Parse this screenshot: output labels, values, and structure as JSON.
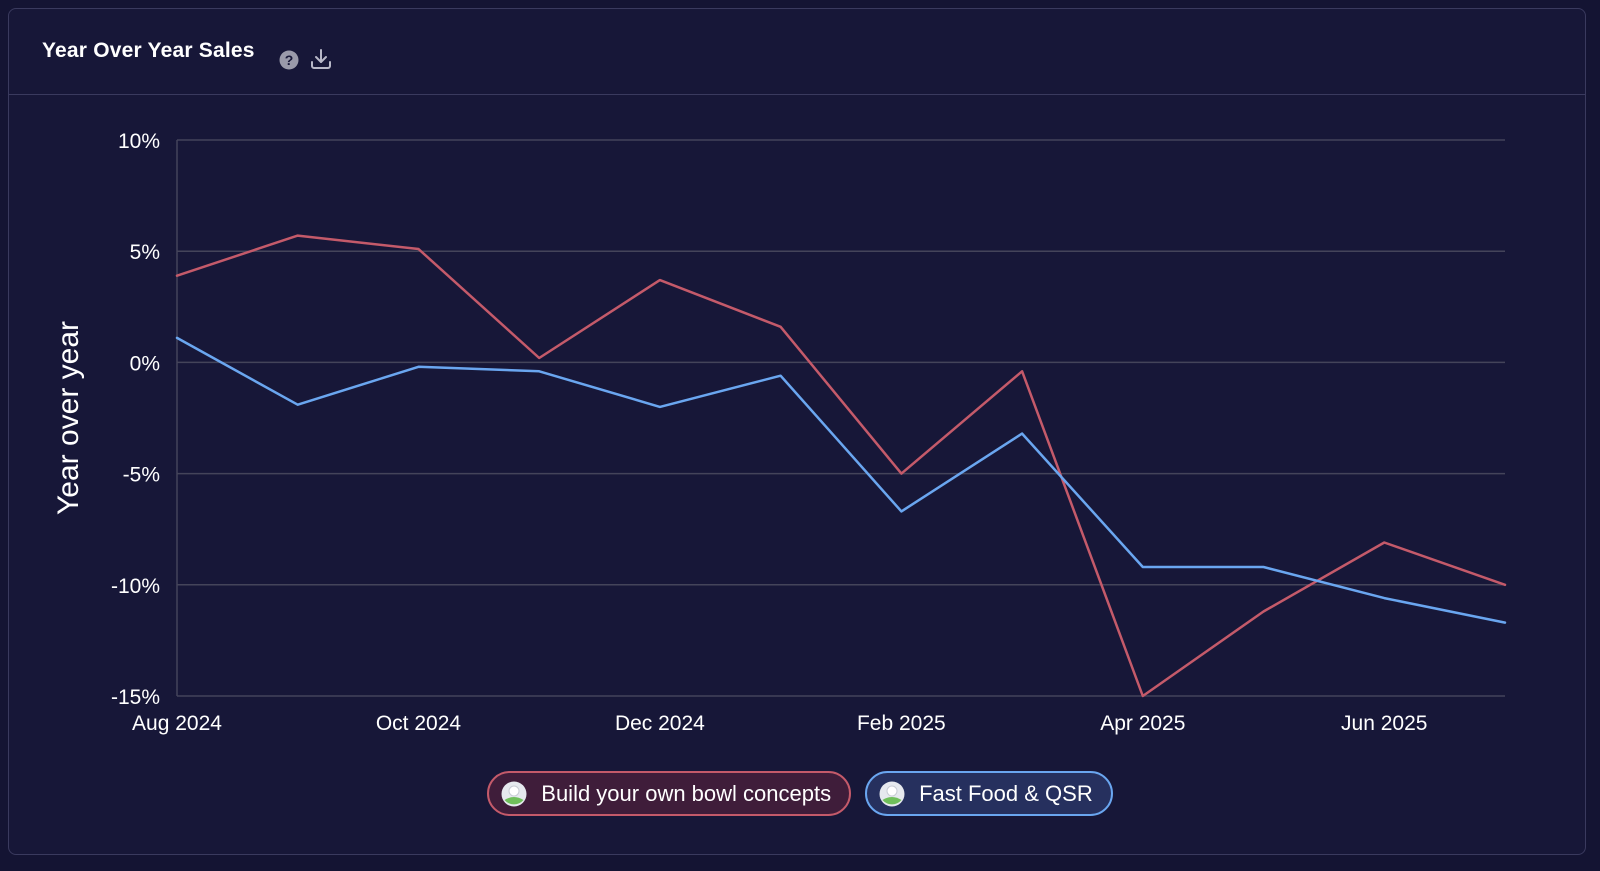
{
  "header": {
    "title": "Year Over Year Sales",
    "help_icon": "question-circle-icon",
    "download_icon": "download-icon"
  },
  "colors": {
    "background": "#171738",
    "grid": "#44445a",
    "series_red": "#c45a6a",
    "series_blue": "#6aa6f0",
    "text": "#ffffff"
  },
  "chart_data": {
    "type": "line",
    "title": "",
    "ylabel": "Year over year",
    "xlabel": "",
    "ylim": [
      -15,
      10
    ],
    "yticks": [
      10,
      5,
      0,
      -5,
      -10,
      -15
    ],
    "ytick_labels": [
      "10%",
      "5%",
      "0%",
      "-5%",
      "-10%",
      "-15%"
    ],
    "x": [
      "2024-08",
      "2024-09",
      "2024-10",
      "2024-11",
      "2024-12",
      "2025-01",
      "2025-02",
      "2025-03",
      "2025-04",
      "2025-05",
      "2025-06",
      "2025-07"
    ],
    "xtick_labels": [
      {
        "index": 0,
        "label": "Aug 2024"
      },
      {
        "index": 2,
        "label": "Oct 2024"
      },
      {
        "index": 4,
        "label": "Dec 2024"
      },
      {
        "index": 6,
        "label": "Feb 2025"
      },
      {
        "index": 8,
        "label": "Apr 2025"
      },
      {
        "index": 10,
        "label": "Jun 2025"
      }
    ],
    "grid": true,
    "legend_position": "bottom-center",
    "series": [
      {
        "name": "Build your own bowl concepts",
        "color": "#c45a6a",
        "values": [
          3.9,
          5.7,
          5.1,
          0.2,
          3.7,
          1.6,
          -5.0,
          -0.4,
          -15.0,
          -11.2,
          -8.1,
          -10.0
        ]
      },
      {
        "name": "Fast Food & QSR",
        "color": "#6aa6f0",
        "values": [
          1.1,
          -1.9,
          -0.2,
          -0.4,
          -2.0,
          -0.6,
          -6.7,
          -3.2,
          -9.2,
          -9.2,
          -10.6,
          -11.7
        ]
      }
    ]
  }
}
